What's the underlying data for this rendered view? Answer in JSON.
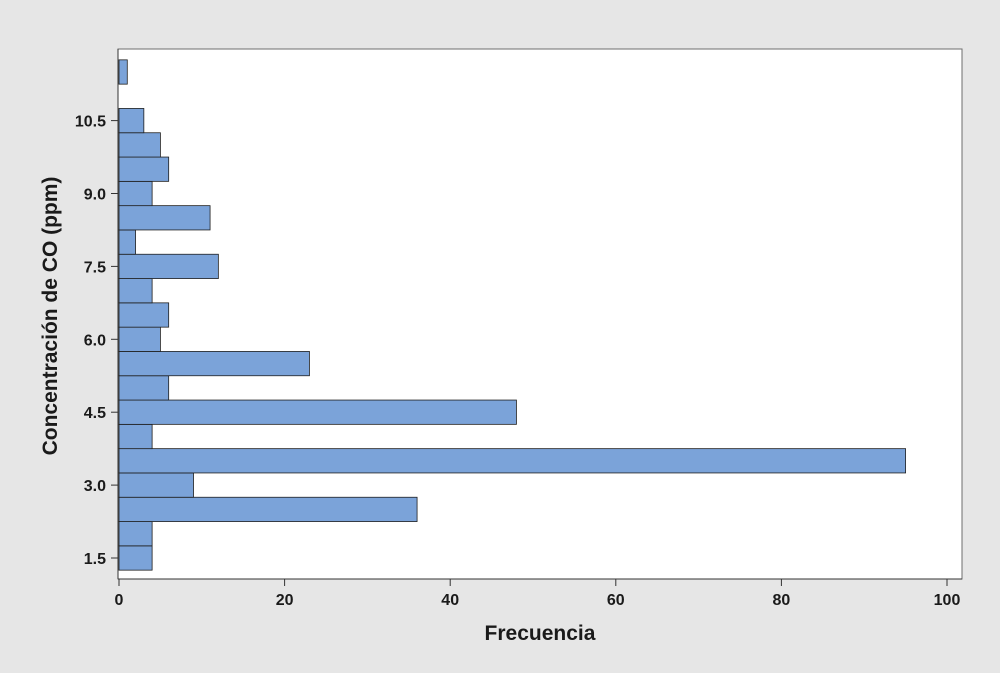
{
  "chart_data": {
    "type": "bar",
    "orientation": "horizontal",
    "xlabel": "Frecuencia",
    "ylabel": "Concentración de CO (ppm)",
    "xlim": [
      0,
      100
    ],
    "x_ticks": [
      0,
      20,
      40,
      60,
      80,
      100
    ],
    "y_ticks": [
      1.5,
      3.0,
      4.5,
      6.0,
      7.5,
      9.0,
      10.5
    ],
    "bin_width": 0.5,
    "bins": [
      {
        "center": 1.5,
        "value": 4
      },
      {
        "center": 2.0,
        "value": 4
      },
      {
        "center": 2.5,
        "value": 36
      },
      {
        "center": 3.0,
        "value": 9
      },
      {
        "center": 3.5,
        "value": 95
      },
      {
        "center": 4.0,
        "value": 4
      },
      {
        "center": 4.5,
        "value": 48
      },
      {
        "center": 5.0,
        "value": 6
      },
      {
        "center": 5.5,
        "value": 23
      },
      {
        "center": 6.0,
        "value": 5
      },
      {
        "center": 6.5,
        "value": 6
      },
      {
        "center": 7.0,
        "value": 4
      },
      {
        "center": 7.5,
        "value": 12
      },
      {
        "center": 8.0,
        "value": 2
      },
      {
        "center": 8.5,
        "value": 11
      },
      {
        "center": 9.0,
        "value": 4
      },
      {
        "center": 9.5,
        "value": 6
      },
      {
        "center": 10.0,
        "value": 5
      },
      {
        "center": 10.5,
        "value": 3
      },
      {
        "center": 11.5,
        "value": 1
      }
    ],
    "grid": false,
    "bar_color": "#7ba3d9",
    "bar_edge_color": "#1f1f1f",
    "plot_background": "#ffffff",
    "figure_background": "#e6e6e6"
  }
}
